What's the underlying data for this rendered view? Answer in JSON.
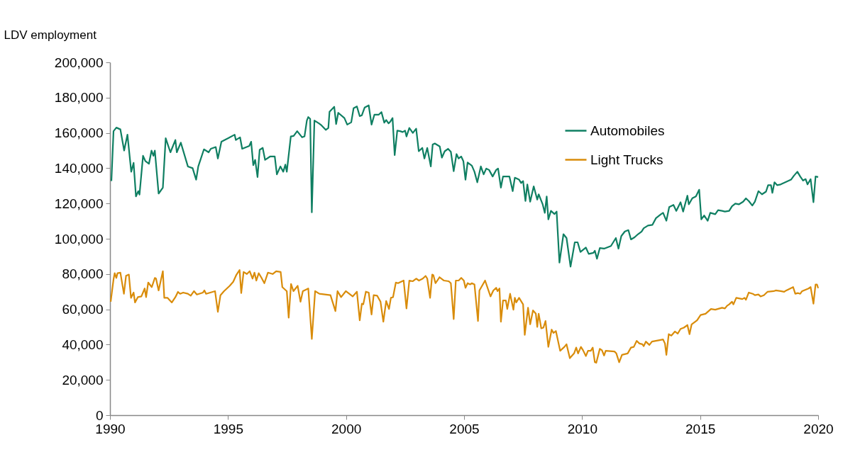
{
  "chart_data": {
    "type": "line",
    "ylabel": "LDV employment",
    "xlim": [
      1990,
      2020
    ],
    "xticks": [
      1990,
      1995,
      2000,
      2005,
      2010,
      2015,
      2020
    ],
    "ylim": [
      0,
      200000
    ],
    "yticks": [
      0,
      {
        "value": 20000,
        "label": "20,000"
      },
      {
        "value": 40000,
        "label": "40,000"
      },
      {
        "value": 60000,
        "label": "60,000"
      },
      {
        "value": 80000,
        "label": "80,000"
      },
      {
        "value": 100000,
        "label": "100,000"
      },
      {
        "value": 120000,
        "label": "120,000"
      },
      {
        "value": 140000,
        "label": "140,000"
      },
      {
        "value": 160000,
        "label": "160,000"
      },
      {
        "value": 180000,
        "label": "180,000"
      },
      {
        "value": 200000,
        "label": "200,000"
      }
    ],
    "grid": false,
    "legend": "top right",
    "marker": "none",
    "line_style": "solid",
    "series": [
      {
        "name": "Automobiles",
        "color": "#0f7f62",
        "x": [
          1990.06,
          1990.15,
          1990.27,
          1990.44,
          1990.6,
          1990.74,
          1990.9,
          1991.0,
          1991.1,
          1991.2,
          1991.25,
          1991.4,
          1991.5,
          1991.65,
          1991.76,
          1991.84,
          1991.9,
          1992.06,
          1992.24,
          1992.36,
          1992.56,
          1992.77,
          1992.83,
          1993.0,
          1993.3,
          1993.5,
          1993.65,
          1993.74,
          1993.98,
          1994.18,
          1994.27,
          1994.48,
          1994.57,
          1994.72,
          1995.01,
          1995.28,
          1995.33,
          1995.51,
          1995.6,
          1995.9,
          1995.98,
          1996.07,
          1996.15,
          1996.25,
          1996.34,
          1996.47,
          1996.57,
          1996.78,
          1996.98,
          1997.07,
          1997.22,
          1997.34,
          1997.43,
          1997.49,
          1997.66,
          1997.78,
          1997.93,
          1998.14,
          1998.24,
          1998.34,
          1998.4,
          1998.48,
          1998.55,
          1998.66,
          1998.85,
          1998.96,
          1999.14,
          1999.25,
          1999.3,
          1999.5,
          1999.58,
          1999.67,
          1999.93,
          2000.05,
          2000.22,
          2000.32,
          2000.46,
          2000.58,
          2000.67,
          2000.79,
          2000.96,
          2001.08,
          2001.2,
          2001.38,
          2001.5,
          2001.62,
          2001.7,
          2001.8,
          2001.88,
          2001.97,
          2002.06,
          2002.17,
          2002.29,
          2002.4,
          2002.5,
          2002.56,
          2002.68,
          2002.83,
          2002.97,
          2003.08,
          2003.23,
          2003.32,
          2003.44,
          2003.59,
          2003.67,
          2003.76,
          2003.97,
          2004.06,
          2004.18,
          2004.32,
          2004.44,
          2004.56,
          2004.68,
          2004.77,
          2004.88,
          2004.97,
          2005.06,
          2005.15,
          2005.33,
          2005.44,
          2005.56,
          2005.71,
          2005.83,
          2005.94,
          2006.06,
          2006.21,
          2006.36,
          2006.44,
          2006.56,
          2006.65,
          2006.92,
          2007.06,
          2007.15,
          2007.33,
          2007.42,
          2007.5,
          2007.6,
          2007.68,
          2007.8,
          2007.95,
          2008.1,
          2008.16,
          2008.33,
          2008.42,
          2008.5,
          2008.57,
          2008.68,
          2008.83,
          2008.92,
          2009.04,
          2009.21,
          2009.34,
          2009.51,
          2009.69,
          2009.81,
          2009.93,
          2010.16,
          2010.28,
          2010.48,
          2010.54,
          2010.63,
          2010.75,
          2010.93,
          2011.22,
          2011.43,
          2011.54,
          2011.66,
          2011.81,
          2011.96,
          2012.07,
          2012.22,
          2012.37,
          2012.52,
          2012.61,
          2012.79,
          2012.98,
          2013.13,
          2013.34,
          2013.43,
          2013.57,
          2013.69,
          2013.87,
          2013.99,
          2014.17,
          2014.28,
          2014.46,
          2014.52,
          2014.67,
          2014.82,
          2014.96,
          2015.05,
          2015.17,
          2015.32,
          2015.43,
          2015.64,
          2015.76,
          2015.93,
          2016.05,
          2016.23,
          2016.35,
          2016.49,
          2016.64,
          2016.82,
          2016.94,
          2017.06,
          2017.21,
          2017.32,
          2017.47,
          2017.62,
          2017.79,
          2017.88,
          2018.0,
          2018.06,
          2018.15,
          2018.26,
          2018.41,
          2018.85,
          2018.97,
          2019.12,
          2019.24,
          2019.36,
          2019.47,
          2019.55,
          2019.68,
          2019.8,
          2019.89,
          2020.0
        ],
        "values": [
          132700,
          161000,
          163000,
          162000,
          150000,
          159000,
          138000,
          143000,
          124000,
          127000,
          125000,
          147000,
          144000,
          142500,
          150000,
          147000,
          150000,
          125600,
          129000,
          157000,
          149000,
          156000,
          149000,
          154500,
          141000,
          140000,
          133500,
          141000,
          150700,
          149000,
          151000,
          152000,
          145500,
          155000,
          157000,
          159000,
          156000,
          157500,
          151000,
          152600,
          155000,
          141700,
          144700,
          135000,
          150400,
          151500,
          144700,
          146600,
          146600,
          136500,
          141000,
          138000,
          142000,
          138000,
          158000,
          158300,
          161000,
          157500,
          158000,
          167000,
          169000,
          168000,
          115000,
          167000,
          165400,
          164300,
          161700,
          162800,
          172000,
          174800,
          165000,
          171400,
          168400,
          164700,
          166000,
          174000,
          175000,
          169500,
          170000,
          174400,
          175600,
          164700,
          170300,
          170300,
          171800,
          165800,
          167300,
          165400,
          166500,
          168400,
          147400,
          161300,
          161000,
          160500,
          161300,
          158000,
          162800,
          160000,
          162400,
          149600,
          151500,
          145500,
          151500,
          141000,
          153400,
          154000,
          152300,
          146000,
          149600,
          151000,
          149300,
          138300,
          148000,
          145500,
          146600,
          144000,
          133500,
          143200,
          141400,
          138000,
          132000,
          141000,
          136500,
          139800,
          139000,
          135300,
          139000,
          139800,
          129000,
          135300,
          135300,
          127000,
          134600,
          133500,
          131600,
          132700,
          121400,
          130800,
          121000,
          129700,
          122200,
          125200,
          119500,
          114700,
          124000,
          111000,
          115800,
          114000,
          115400,
          86500,
          102600,
          100400,
          84200,
          98000,
          98000,
          92500,
          95000,
          91400,
          92000,
          93200,
          88700,
          94700,
          94400,
          95900,
          100400,
          94400,
          101500,
          104100,
          104900,
          99600,
          100800,
          102600,
          104100,
          106000,
          107500,
          107900,
          111700,
          113900,
          114700,
          110200,
          118000,
          119200,
          115800,
          120700,
          115400,
          124400,
          119500,
          123000,
          124000,
          127800,
          111000,
          113200,
          110200,
          114700,
          113900,
          116200,
          115800,
          115400,
          115800,
          118400,
          119900,
          119500,
          121000,
          122900,
          121400,
          118800,
          121000,
          127000,
          125200,
          126700,
          130400,
          130400,
          126000,
          132000,
          130400,
          130800,
          133500,
          135700,
          138000,
          135300,
          133000,
          133800,
          130800,
          133800,
          120700,
          135300,
          135000
        ]
      },
      {
        "name": "Light Trucks",
        "color": "#d98c0a",
        "x": [
          1990.03,
          1990.15,
          1990.2,
          1990.27,
          1990.32,
          1990.44,
          1990.59,
          1990.68,
          1990.8,
          1990.89,
          1991.0,
          1991.06,
          1991.18,
          1991.33,
          1991.47,
          1991.53,
          1991.62,
          1991.77,
          1991.9,
          1991.95,
          1992.06,
          1992.24,
          1992.3,
          1992.44,
          1992.62,
          1992.77,
          1992.88,
          1992.97,
          1993.1,
          1993.3,
          1993.42,
          1993.56,
          1993.68,
          1993.94,
          1994.0,
          1994.07,
          1994.45,
          1994.57,
          1994.68,
          1994.83,
          1995.07,
          1995.22,
          1995.36,
          1995.49,
          1995.56,
          1995.66,
          1995.8,
          1995.92,
          1996.04,
          1996.12,
          1996.2,
          1996.3,
          1996.42,
          1996.54,
          1996.69,
          1996.89,
          1997.04,
          1997.23,
          1997.3,
          1997.49,
          1997.57,
          1997.67,
          1997.77,
          1997.95,
          1998.07,
          1998.17,
          1998.4,
          1998.55,
          1998.69,
          1998.87,
          1999.34,
          1999.55,
          1999.64,
          1999.79,
          1999.99,
          2000.28,
          2000.46,
          2000.58,
          2000.67,
          2000.73,
          2000.84,
          2000.96,
          2001.08,
          2001.17,
          2001.32,
          2001.46,
          2001.58,
          2001.7,
          2001.82,
          2001.9,
          2001.99,
          2002.11,
          2002.2,
          2002.44,
          2002.56,
          2002.68,
          2002.82,
          2002.97,
          2003.09,
          2003.25,
          2003.37,
          2003.44,
          2003.56,
          2003.65,
          2003.7,
          2003.79,
          2003.96,
          2004.15,
          2004.35,
          2004.44,
          2004.56,
          2004.65,
          2004.77,
          2004.88,
          2004.99,
          2005.06,
          2005.15,
          2005.26,
          2005.33,
          2005.44,
          2005.59,
          2005.65,
          2005.89,
          2006.12,
          2006.24,
          2006.36,
          2006.42,
          2006.5,
          2006.56,
          2006.65,
          2006.77,
          2006.83,
          2006.95,
          2007.09,
          2007.15,
          2007.21,
          2007.33,
          2007.5,
          2007.57,
          2007.71,
          2007.8,
          2007.92,
          2008.04,
          2008.1,
          2008.16,
          2008.27,
          2008.36,
          2008.45,
          2008.57,
          2008.71,
          2008.79,
          2008.89,
          2009.07,
          2009.25,
          2009.34,
          2009.48,
          2009.66,
          2009.75,
          2009.83,
          2009.95,
          2010.04,
          2010.16,
          2010.25,
          2010.37,
          2010.45,
          2010.54,
          2010.6,
          2010.75,
          2010.84,
          2010.93,
          2011.0,
          2011.37,
          2011.45,
          2011.57,
          2011.69,
          2011.93,
          2012.07,
          2012.19,
          2012.31,
          2012.43,
          2012.55,
          2012.61,
          2012.7,
          2012.85,
          2012.96,
          2013.28,
          2013.43,
          2013.51,
          2013.57,
          2013.67,
          2013.78,
          2013.93,
          2014.05,
          2014.17,
          2014.31,
          2014.46,
          2014.55,
          2014.64,
          2014.87,
          2015.02,
          2015.23,
          2015.46,
          2015.64,
          2015.93,
          2016.05,
          2016.14,
          2016.23,
          2016.35,
          2016.41,
          2016.53,
          2016.79,
          2016.88,
          2016.94,
          2017.06,
          2017.23,
          2017.32,
          2017.47,
          2017.56,
          2017.7,
          2017.85,
          2018.12,
          2018.2,
          2018.41,
          2018.56,
          2018.65,
          2018.94,
          2019.03,
          2019.15,
          2019.24,
          2019.32,
          2019.59,
          2019.68,
          2019.8,
          2019.89,
          2019.95,
          2020.0
        ],
        "values": [
          64300,
          77000,
          80500,
          77800,
          80500,
          80800,
          68800,
          79000,
          79700,
          66500,
          69500,
          63900,
          66900,
          67300,
          71800,
          66900,
          75200,
          72600,
          77800,
          77400,
          70700,
          81600,
          66500,
          66500,
          63900,
          66900,
          69900,
          68800,
          69500,
          68800,
          67700,
          70300,
          68400,
          69500,
          70700,
          68800,
          70300,
          58600,
          68000,
          70300,
          73300,
          75600,
          79700,
          82300,
          69200,
          81200,
          80000,
          81600,
          77400,
          80800,
          76300,
          80500,
          77800,
          74800,
          80800,
          80000,
          81600,
          81200,
          72600,
          70300,
          55300,
          74400,
          70300,
          73300,
          64300,
          70300,
          71800,
          43200,
          70300,
          68800,
          68000,
          59000,
          70300,
          66900,
          70300,
          67300,
          70000,
          53800,
          63200,
          62800,
          70000,
          69500,
          57100,
          68000,
          67700,
          64300,
          53000,
          64700,
          60200,
          66500,
          66900,
          75200,
          74800,
          76300,
          60500,
          76300,
          75900,
          77400,
          76300,
          77400,
          78900,
          77400,
          66500,
          79700,
          79300,
          74800,
          78200,
          76300,
          75900,
          74800,
          54500,
          76300,
          76300,
          77800,
          76300,
          72200,
          74800,
          74100,
          74800,
          74100,
          53400,
          70700,
          76300,
          67300,
          70700,
          72200,
          70300,
          71800,
          53000,
          65000,
          65000,
          60200,
          68800,
          59800,
          66500,
          63900,
          66500,
          62800,
          45500,
          60900,
          51500,
          59400,
          57500,
          50000,
          57500,
          49200,
          49600,
          53400,
          38700,
          48500,
          46600,
          47700,
          36500,
          38700,
          40200,
          32300,
          35000,
          38300,
          35000,
          38700,
          36800,
          33500,
          36500,
          36500,
          38300,
          30000,
          29700,
          37600,
          36800,
          33800,
          36500,
          36100,
          35000,
          30000,
          34200,
          35000,
          38300,
          38700,
          42100,
          40600,
          40200,
          39100,
          41700,
          39800,
          41700,
          42500,
          42900,
          40600,
          34200,
          45900,
          45100,
          47400,
          46200,
          48900,
          49600,
          51100,
          45900,
          51500,
          53800,
          56800,
          57500,
          60200,
          59800,
          60900,
          60500,
          62000,
          62800,
          64300,
          62800,
          66500,
          65800,
          66500,
          65400,
          69500,
          68800,
          68000,
          68400,
          67300,
          68000,
          69900,
          70300,
          70700,
          70300,
          69900,
          70700,
          72600,
          68800,
          69200,
          68800,
          70300,
          71800,
          72600,
          63200,
          74100,
          74100,
          72000
        ]
      }
    ]
  }
}
